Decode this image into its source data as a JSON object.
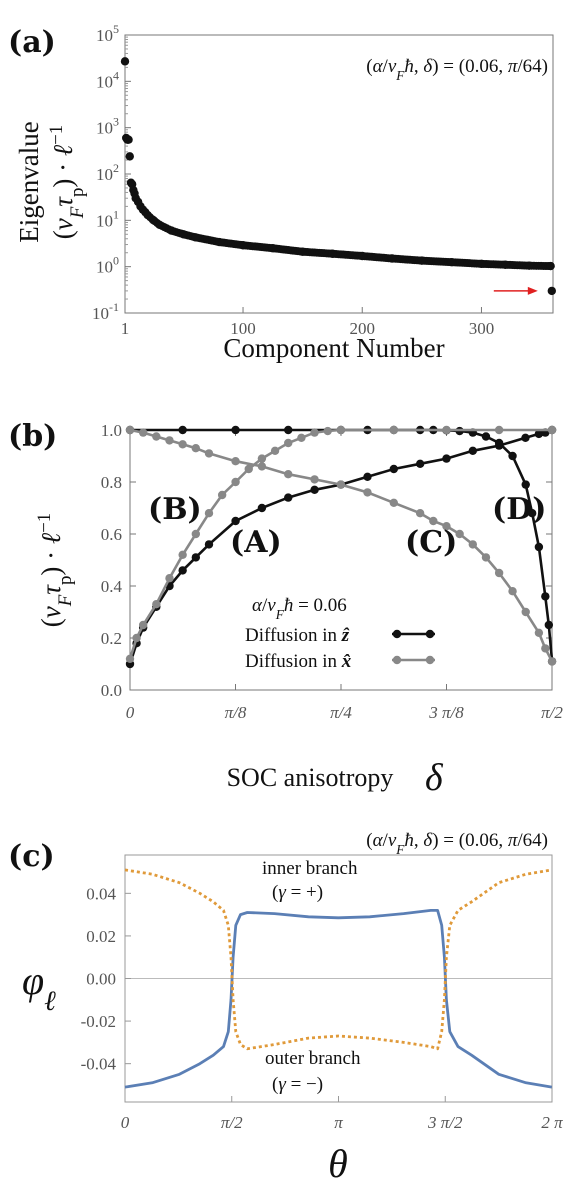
{
  "chart_data": [
    {
      "panel": "(a)",
      "type": "scatter",
      "annotation": "(α/v_F ħ,  δ) = (0.06,  π/64)",
      "xlabel": "Component Number",
      "ylabel_line1": "Eigenvalue",
      "ylabel_line2": "(v_F τ_p) · ℓ⁻¹",
      "x_ticks": [
        "1",
        "100",
        "200",
        "300"
      ],
      "x_tick_values": [
        1,
        100,
        200,
        300
      ],
      "y_scale": "log",
      "y_ticks": [
        {
          "base": "10",
          "exp": "-1"
        },
        {
          "base": "10",
          "exp": "0"
        },
        {
          "base": "10",
          "exp": "1"
        },
        {
          "base": "10",
          "exp": "2"
        },
        {
          "base": "10",
          "exp": "3"
        },
        {
          "base": "10",
          "exp": "4"
        },
        {
          "base": "10",
          "exp": "5"
        }
      ],
      "ylim": [
        0.1,
        100000
      ],
      "xlim": [
        1,
        360
      ],
      "highlight": {
        "x": 359,
        "y": 0.3,
        "arrow_color": "#e02020"
      },
      "points_description_source": "eigenvalue spectrum",
      "values": [
        [
          1,
          27000
        ],
        [
          2,
          600
        ],
        [
          3,
          550
        ],
        [
          4,
          550
        ],
        [
          5,
          240
        ],
        [
          6,
          65
        ],
        [
          7,
          60
        ],
        [
          8,
          45
        ],
        [
          9,
          38
        ],
        [
          10,
          30
        ],
        [
          12,
          25
        ],
        [
          14,
          20
        ],
        [
          16,
          17
        ],
        [
          18,
          15
        ],
        [
          20,
          13
        ],
        [
          25,
          10
        ],
        [
          30,
          8
        ],
        [
          40,
          6
        ],
        [
          50,
          5
        ],
        [
          60,
          4.3
        ],
        [
          80,
          3.4
        ],
        [
          100,
          2.9
        ],
        [
          125,
          2.5
        ],
        [
          150,
          2.1
        ],
        [
          175,
          1.9
        ],
        [
          200,
          1.7
        ],
        [
          225,
          1.5
        ],
        [
          250,
          1.35
        ],
        [
          275,
          1.25
        ],
        [
          300,
          1.15
        ],
        [
          320,
          1.1
        ],
        [
          340,
          1.05
        ],
        [
          358,
          1.03
        ],
        [
          359,
          0.3
        ]
      ]
    },
    {
      "panel": "(b)",
      "type": "line",
      "xlabel": "SOC anisotropy",
      "xlabel_symbol": "δ",
      "ylabel": "(v_F τ_p) · ℓ⁻¹",
      "x_ticks": [
        "0",
        "π/8",
        "π/4",
        "3 π/8",
        "π/2"
      ],
      "x_tick_values": [
        0,
        0.3927,
        0.7854,
        1.1781,
        1.5708
      ],
      "y_ticks": [
        "0.0",
        "0.2",
        "0.4",
        "0.6",
        "0.8",
        "1.0"
      ],
      "y_tick_values": [
        0,
        0.2,
        0.4,
        0.6,
        0.8,
        1.0
      ],
      "ylim": [
        0,
        1.0
      ],
      "xlim": [
        0,
        1.5708
      ],
      "legend_title": "α/v_F ħ = 0.06",
      "legend_placement": "lower-center",
      "labels": [
        "(A)",
        "(B)",
        "(C)",
        "(D)"
      ],
      "series": [
        {
          "name": "Diffusion in ẑ",
          "color": "#111111",
          "role": "A",
          "x": [
            0.0,
            0.0245,
            0.049,
            0.098,
            0.147,
            0.196,
            0.245,
            0.294,
            0.393,
            0.491,
            0.589,
            0.687,
            0.785,
            0.884,
            0.982,
            1.08,
            1.178,
            1.276,
            1.374,
            1.472,
            1.522,
            1.546,
            1.571
          ],
          "values": [
            0.1,
            0.18,
            0.24,
            0.32,
            0.4,
            0.46,
            0.51,
            0.56,
            0.65,
            0.7,
            0.74,
            0.77,
            0.79,
            0.82,
            0.85,
            0.87,
            0.89,
            0.92,
            0.94,
            0.97,
            0.985,
            0.99,
            1.0
          ]
        },
        {
          "name": "",
          "color": "#111111",
          "role": "D",
          "x": [
            0.0,
            0.196,
            0.393,
            0.589,
            0.785,
            0.884,
            0.982,
            1.08,
            1.129,
            1.178,
            1.227,
            1.276,
            1.325,
            1.374,
            1.424,
            1.473,
            1.497,
            1.522,
            1.546,
            1.559,
            1.571
          ],
          "values": [
            1.0,
            1.0,
            1.0,
            1.0,
            1.0,
            1.0,
            1.0,
            1.0,
            1.0,
            0.999,
            0.996,
            0.99,
            0.975,
            0.95,
            0.9,
            0.79,
            0.68,
            0.55,
            0.36,
            0.25,
            0.11
          ]
        },
        {
          "name": "Diffusion in x̂",
          "color": "#888888",
          "role": "B",
          "x": [
            0.0,
            0.0245,
            0.049,
            0.098,
            0.147,
            0.196,
            0.245,
            0.294,
            0.343,
            0.393,
            0.442,
            0.491,
            0.54,
            0.589,
            0.638,
            0.687,
            0.736,
            0.785,
            0.982,
            1.178,
            1.374,
            1.571
          ],
          "values": [
            0.12,
            0.2,
            0.25,
            0.33,
            0.43,
            0.52,
            0.6,
            0.68,
            0.75,
            0.8,
            0.85,
            0.89,
            0.92,
            0.95,
            0.97,
            0.99,
            0.996,
            1.0,
            1.0,
            1.0,
            1.0,
            1.0
          ]
        },
        {
          "name": "",
          "color": "#888888",
          "role": "C",
          "x": [
            0.0,
            0.049,
            0.098,
            0.147,
            0.196,
            0.245,
            0.294,
            0.393,
            0.491,
            0.589,
            0.687,
            0.785,
            0.884,
            0.982,
            1.08,
            1.129,
            1.178,
            1.227,
            1.276,
            1.325,
            1.374,
            1.424,
            1.473,
            1.522,
            1.546,
            1.571
          ],
          "values": [
            1.0,
            0.99,
            0.975,
            0.96,
            0.945,
            0.93,
            0.91,
            0.88,
            0.86,
            0.83,
            0.81,
            0.79,
            0.76,
            0.72,
            0.68,
            0.65,
            0.63,
            0.6,
            0.56,
            0.51,
            0.45,
            0.38,
            0.3,
            0.22,
            0.16,
            0.11
          ]
        }
      ]
    },
    {
      "panel": "(c)",
      "type": "line",
      "annotation": "(α/v_F ħ,  δ) = (0.06,  π/64)",
      "xlabel": "θ",
      "ylabel": "φ_ℓ",
      "x_ticks": [
        "0",
        "π/2",
        "π",
        "3 π/2",
        "2 π"
      ],
      "x_tick_values": [
        0,
        1.5708,
        3.1416,
        4.7124,
        6.2832
      ],
      "y_ticks": [
        "-0.04",
        "-0.02",
        "0.00",
        "0.02",
        "0.04"
      ],
      "y_tick_values": [
        -0.04,
        -0.02,
        0.0,
        0.02,
        0.04
      ],
      "ylim": [
        -0.058,
        0.058
      ],
      "xlim": [
        0,
        6.2832
      ],
      "branch_labels": {
        "inner_line1": "inner branch",
        "inner_line2": "(γ = +)",
        "outer_line1": "outer branch",
        "outer_line2": "(γ = −)"
      },
      "series": [
        {
          "name": "inner branch",
          "color": "#5b7fb5",
          "style": "solid",
          "x": [
            0,
            0.4,
            0.8,
            1.1,
            1.3,
            1.45,
            1.52,
            1.56,
            1.59,
            1.63,
            1.7,
            1.8,
            2.2,
            2.7,
            3.14,
            3.6,
            4.1,
            4.5,
            4.6,
            4.66,
            4.7,
            4.73,
            4.78,
            4.9,
            5.1,
            5.5,
            5.9,
            6.28
          ],
          "values": [
            -0.051,
            -0.049,
            -0.045,
            -0.04,
            -0.036,
            -0.032,
            -0.025,
            -0.01,
            0.01,
            0.025,
            0.03,
            0.031,
            0.0305,
            0.029,
            0.0285,
            0.029,
            0.0305,
            0.032,
            0.032,
            0.025,
            0.01,
            -0.01,
            -0.025,
            -0.032,
            -0.036,
            -0.045,
            -0.049,
            -0.051
          ]
        },
        {
          "name": "outer branch",
          "color": "#e09a3a",
          "style": "dotted",
          "x": [
            0,
            0.4,
            0.8,
            1.1,
            1.3,
            1.45,
            1.52,
            1.56,
            1.59,
            1.63,
            1.7,
            1.8,
            2.2,
            2.7,
            3.14,
            3.6,
            4.1,
            4.5,
            4.6,
            4.66,
            4.7,
            4.73,
            4.78,
            4.9,
            5.1,
            5.5,
            5.9,
            6.28
          ],
          "values": [
            0.051,
            0.049,
            0.045,
            0.04,
            0.036,
            0.032,
            0.025,
            0.01,
            -0.01,
            -0.025,
            -0.031,
            -0.033,
            -0.031,
            -0.028,
            -0.027,
            -0.028,
            -0.03,
            -0.032,
            -0.033,
            -0.025,
            -0.01,
            0.01,
            0.025,
            0.032,
            0.036,
            0.045,
            0.049,
            0.051
          ]
        }
      ]
    }
  ]
}
